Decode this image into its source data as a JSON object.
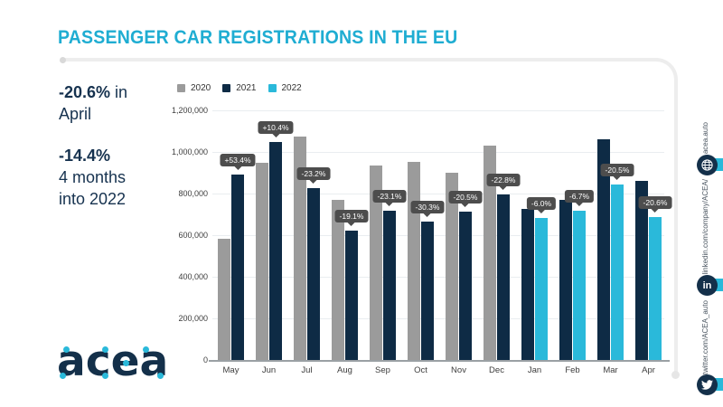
{
  "header": {
    "title": "PASSENGER CAR REGISTRATIONS IN THE EU"
  },
  "stats": [
    {
      "bold": "-20.6%",
      "suffix": " in",
      "line2": "April"
    },
    {
      "bold": "-14.4%",
      "suffix": "",
      "line2": "4 months",
      "line3": "into 2022"
    }
  ],
  "logo": {
    "text": "acea"
  },
  "colors": {
    "title_cyan": "#1fadd2",
    "navy": "#0e2b45",
    "gray": "#9b9b9b",
    "cyan": "#2ab9da",
    "tooltip_bg": "#4d4d4d"
  },
  "chart_data": {
    "type": "bar",
    "title": "Passenger car registrations in the EU",
    "xlabel": "",
    "ylabel": "",
    "ylim": [
      0,
      1200000
    ],
    "ytick_interval": 200000,
    "ytick_labels": [
      "1,200,000",
      "1,000,000",
      "800,000",
      "600,000",
      "400,000",
      "200,000",
      "0"
    ],
    "grid": true,
    "legend_position": "top",
    "legend": [
      "2020",
      "2021",
      "2022"
    ],
    "series_colors": {
      "2020": "#9b9b9b",
      "2021": "#0e2b45",
      "2022": "#2ab9da"
    },
    "categories": [
      "May",
      "Jun",
      "Jul",
      "Aug",
      "Sep",
      "Oct",
      "Nov",
      "Dec",
      "Jan",
      "Feb",
      "Mar",
      "Apr"
    ],
    "months": [
      {
        "label": "May",
        "bars": [
          {
            "series": "2020",
            "value": 581000
          },
          {
            "series": "2021",
            "value": 892000
          }
        ],
        "change": "+53.4%"
      },
      {
        "label": "Jun",
        "bars": [
          {
            "series": "2020",
            "value": 950000
          },
          {
            "series": "2021",
            "value": 1048000
          }
        ],
        "change": "+10.4%"
      },
      {
        "label": "Jul",
        "bars": [
          {
            "series": "2020",
            "value": 1073000
          },
          {
            "series": "2021",
            "value": 824000
          }
        ],
        "change": "-23.2%"
      },
      {
        "label": "Aug",
        "bars": [
          {
            "series": "2020",
            "value": 770000
          },
          {
            "series": "2021",
            "value": 623000
          }
        ],
        "change": "-19.1%"
      },
      {
        "label": "Sep",
        "bars": [
          {
            "series": "2020",
            "value": 934000
          },
          {
            "series": "2021",
            "value": 719000
          }
        ],
        "change": "-23.1%"
      },
      {
        "label": "Oct",
        "bars": [
          {
            "series": "2020",
            "value": 954000
          },
          {
            "series": "2021",
            "value": 665000
          }
        ],
        "change": "-30.3%"
      },
      {
        "label": "Nov",
        "bars": [
          {
            "series": "2020",
            "value": 898000
          },
          {
            "series": "2021",
            "value": 713000
          }
        ],
        "change": "-20.5%"
      },
      {
        "label": "Dec",
        "bars": [
          {
            "series": "2020",
            "value": 1031000
          },
          {
            "series": "2021",
            "value": 795000
          }
        ],
        "change": "-22.8%"
      },
      {
        "label": "Jan",
        "bars": [
          {
            "series": "2021",
            "value": 726000
          },
          {
            "series": "2022",
            "value": 683000
          }
        ],
        "change": "-6.0%"
      },
      {
        "label": "Feb",
        "bars": [
          {
            "series": "2021",
            "value": 771000
          },
          {
            "series": "2022",
            "value": 719000
          }
        ],
        "change": "-6.7%"
      },
      {
        "label": "Mar",
        "bars": [
          {
            "series": "2021",
            "value": 1063000
          },
          {
            "series": "2022",
            "value": 844000
          }
        ],
        "change": "-20.5%"
      },
      {
        "label": "Apr",
        "bars": [
          {
            "series": "2021",
            "value": 862000
          },
          {
            "series": "2022",
            "value": 685000
          }
        ],
        "change": "-20.6%"
      }
    ]
  },
  "social": {
    "items": [
      {
        "label": "acea.auto"
      },
      {
        "label": "linkedin.com/company/ACEA/"
      },
      {
        "label": "twitter.com/ACEA_auto"
      }
    ]
  }
}
